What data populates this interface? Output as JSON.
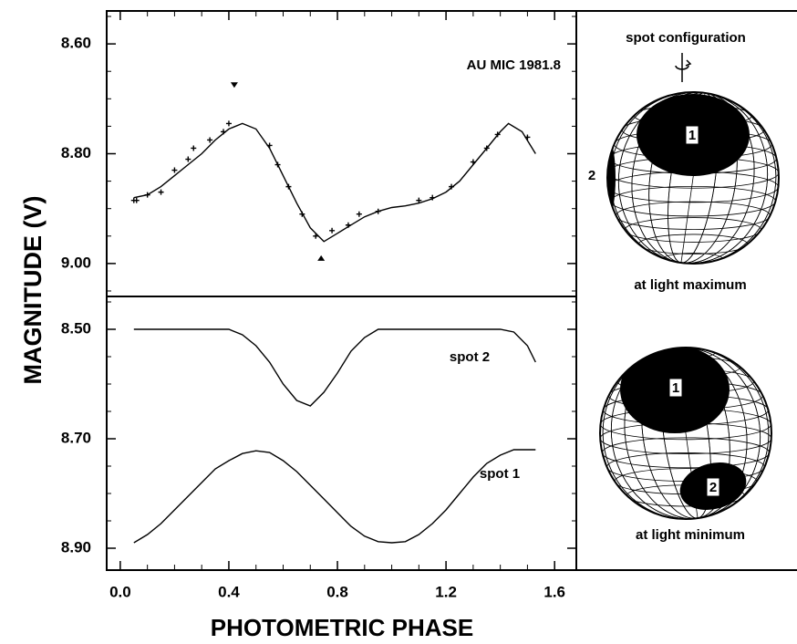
{
  "axes": {
    "ylabel": "MAGNITUDE (V)",
    "xlabel": "PHOTOMETRIC PHASE"
  },
  "chart_data": [
    {
      "type": "line",
      "title": "AU MIC 1981.8",
      "color": "#000000",
      "x": [
        0.05,
        0.1,
        0.15,
        0.2,
        0.25,
        0.3,
        0.35,
        0.4,
        0.45,
        0.5,
        0.55,
        0.6,
        0.65,
        0.7,
        0.75,
        0.8,
        0.85,
        0.9,
        0.95,
        1.0,
        1.05,
        1.1,
        1.15,
        1.2,
        1.25,
        1.3,
        1.35,
        1.4,
        1.43,
        1.48,
        1.53
      ],
      "values": [
        8.88,
        8.875,
        8.86,
        8.84,
        8.82,
        8.8,
        8.775,
        8.755,
        8.745,
        8.755,
        8.79,
        8.84,
        8.89,
        8.935,
        8.96,
        8.945,
        8.93,
        8.915,
        8.905,
        8.898,
        8.895,
        8.89,
        8.882,
        8.87,
        8.85,
        8.82,
        8.79,
        8.76,
        8.745,
        8.76,
        8.8
      ],
      "observations": {
        "x": [
          0.05,
          0.06,
          0.1,
          0.15,
          0.2,
          0.25,
          0.27,
          0.33,
          0.38,
          0.4,
          0.55,
          0.58,
          0.62,
          0.67,
          0.72,
          0.78,
          0.84,
          0.88,
          0.95,
          1.1,
          1.15,
          1.22,
          1.3,
          1.35,
          1.39,
          1.5
        ],
        "values": [
          8.885,
          8.885,
          8.875,
          8.87,
          8.83,
          8.81,
          8.79,
          8.775,
          8.76,
          8.745,
          8.785,
          8.82,
          8.86,
          8.91,
          8.95,
          8.94,
          8.93,
          8.91,
          8.905,
          8.885,
          8.88,
          8.86,
          8.815,
          8.79,
          8.765,
          8.77
        ]
      },
      "extremes": {
        "x": [
          0.42,
          0.74
        ],
        "values": [
          8.675,
          8.99
        ]
      },
      "xlim": [
        -0.05,
        1.68
      ],
      "ylim": [
        8.54,
        9.06
      ],
      "yticks": [
        {
          "value": 8.6,
          "label": "8.60"
        },
        {
          "value": 8.8,
          "label": "8.80"
        },
        {
          "value": 9.0,
          "label": "9.00"
        }
      ]
    },
    {
      "type": "line",
      "x": [
        0.05,
        0.1,
        0.15,
        0.2,
        0.25,
        0.3,
        0.35,
        0.4,
        0.45,
        0.5,
        0.55,
        0.6,
        0.65,
        0.7,
        0.75,
        0.8,
        0.85,
        0.9,
        0.95,
        1.0,
        1.05,
        1.1,
        1.15,
        1.2,
        1.25,
        1.3,
        1.35,
        1.4,
        1.45,
        1.5,
        1.53
      ],
      "series": [
        {
          "name": "spot 2",
          "color": "#000000",
          "values": [
            8.5,
            8.5,
            8.5,
            8.5,
            8.5,
            8.5,
            8.5,
            8.5,
            8.51,
            8.53,
            8.56,
            8.6,
            8.63,
            8.64,
            8.615,
            8.58,
            8.54,
            8.515,
            8.5,
            8.5,
            8.5,
            8.5,
            8.5,
            8.5,
            8.5,
            8.5,
            8.5,
            8.5,
            8.505,
            8.53,
            8.56
          ]
        },
        {
          "name": "spot 1",
          "color": "#000000",
          "values": [
            8.89,
            8.875,
            8.855,
            8.83,
            8.805,
            8.78,
            8.755,
            8.74,
            8.727,
            8.722,
            8.725,
            8.74,
            8.76,
            8.785,
            8.81,
            8.835,
            8.86,
            8.878,
            8.888,
            8.89,
            8.888,
            8.875,
            8.855,
            8.83,
            8.8,
            8.77,
            8.745,
            8.73,
            8.72,
            8.72,
            8.72
          ]
        }
      ],
      "xlim": [
        -0.05,
        1.68
      ],
      "ylim": [
        8.44,
        8.94
      ],
      "xticks": [
        {
          "value": 0,
          "label": "0.0"
        },
        0.4,
        0.8,
        1.2,
        1.6
      ],
      "yticks": [
        {
          "value": 8.5,
          "label": "8.50"
        },
        {
          "value": 8.7,
          "label": "8.70"
        },
        {
          "value": 8.9,
          "label": "8.90"
        }
      ]
    }
  ],
  "diagram": {
    "title": "spot configuration",
    "top_caption": "at light maximum",
    "bottom_caption": "at light minimum",
    "top_spot_1": "1",
    "top_spot_2": "2",
    "bottom_spot_1": "1",
    "bottom_spot_2": "2"
  }
}
